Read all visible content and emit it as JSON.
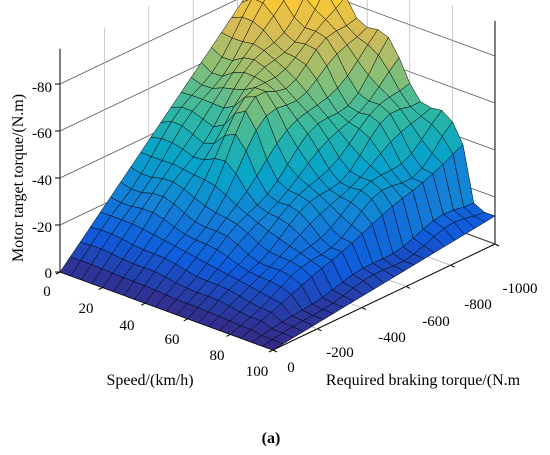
{
  "chart_data": {
    "type": "surface",
    "caption": "(a)",
    "zlabel": "Motor target torque/(N.m)",
    "xlabel": "Speed/(km/h)",
    "ylabel": "Required braking torque/(N.m",
    "x_ticks": [
      0,
      20,
      40,
      60,
      80,
      100
    ],
    "y_ticks": [
      0,
      -200,
      -400,
      -600,
      -800,
      -1000
    ],
    "z_ticks": [
      0,
      -20,
      -40,
      -60,
      -80
    ],
    "x_tick_labels": [
      "0",
      "20",
      "40",
      "60",
      "80",
      "100"
    ],
    "y_tick_labels": [
      "0",
      "-200",
      "-400",
      "-600",
      "-800",
      "-1000"
    ],
    "z_tick_labels": [
      "0",
      "-20",
      "-40",
      "-60",
      "-80"
    ],
    "xlim": [
      0,
      100
    ],
    "ylim": [
      0,
      -1000
    ],
    "zlim": [
      0,
      -90
    ],
    "grid": true,
    "colormap": "parula",
    "colormap_stops": [
      "#352a87",
      "#0f5cdd",
      "#1481d6",
      "#06a4ca",
      "#2eb7a4",
      "#87bf77",
      "#d1bb59",
      "#fec832",
      "#f9fb0e"
    ],
    "surface_description_values": {
      "speed_samples": [
        0,
        10,
        20,
        30,
        40,
        50,
        60,
        70,
        80,
        90,
        100
      ],
      "braking_torque_samples": [
        0,
        -100,
        -200,
        -300,
        -400,
        -500,
        -600,
        -700,
        -800,
        -900,
        -1000
      ],
      "max_torque_at_full_braking": -90
    }
  }
}
